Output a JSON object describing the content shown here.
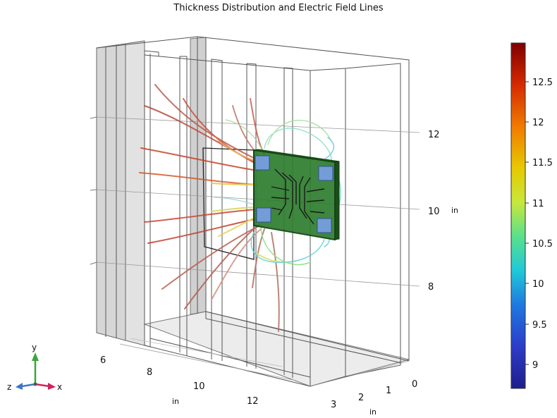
{
  "title": "Thickness Distribution and Electric Field Lines",
  "axes": {
    "x_ticks": [
      "6",
      "8",
      "10",
      "12"
    ],
    "x_unit": "in",
    "z_ticks": [
      "0",
      "1",
      "2",
      "3"
    ],
    "z_unit": "in",
    "y_ticks": [
      "12",
      "10",
      "8"
    ],
    "y_unit": "in"
  },
  "colorbar": {
    "ticks": [
      "12.5",
      "12",
      "11.5",
      "11",
      "10.5",
      "10",
      "9.5",
      "9"
    ],
    "min": 8.7,
    "max": 12.95,
    "colors": [
      "#7f0000",
      "#d42a00",
      "#f07a00",
      "#e8c800",
      "#c8e83a",
      "#5ae08c",
      "#20c8d8",
      "#1e78e0",
      "#2c3cc8",
      "#1e1e8c"
    ]
  },
  "triad": {
    "y_label": "y",
    "z_label": "z",
    "x_label": "x",
    "y_color": "#3aa63a",
    "x_color": "#d0245a",
    "z_color": "#3c78c8"
  },
  "board": {
    "color": "#2e7d2e"
  }
}
